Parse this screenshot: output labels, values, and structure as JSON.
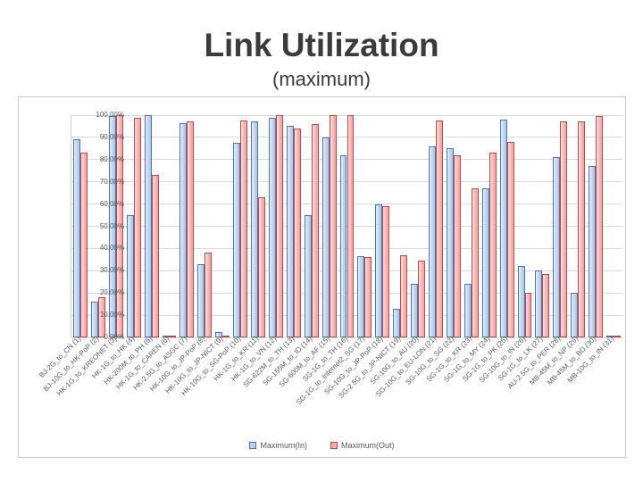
{
  "slide": {
    "title": "Link Utilization",
    "subtitle": "(maximum)"
  },
  "chart_data": {
    "type": "bar",
    "title": "Link Utilization (maximum)",
    "xlabel": "",
    "ylabel": "",
    "ylim": [
      0,
      100
    ],
    "ytick_step": 10,
    "yticks": [
      "0.00%",
      "10.00%",
      "20.00%",
      "30.00%",
      "40.00%",
      "50.00%",
      "60.00%",
      "70.00%",
      "80.00%",
      "90.00%",
      "100.00%"
    ],
    "grid": true,
    "legend_position": "bottom",
    "categories": [
      "BJ-2G_to_CN (1)",
      "BJ-10G_to_HK-PoP (2)",
      "HK-1G_to_KREONET (3)",
      "HK-1G_to_HK (4)",
      "HK-200M_to_PH (5)",
      "HK-1G_to_CAREN (6)",
      "HK-2.5G_to_ASGC (7)",
      "HK-10G_to_JP-PoP (8)",
      "HK-10G_to_JP-NICT (9)",
      "HK-10G_to_SG-PoP (10)",
      "HK-1G_to_KR (11)",
      "HK-1G_to_VN (12)",
      "SG-622M_to_TH (13)",
      "SG-155M_to_ID (14)",
      "SG-600M_to_AF (15)",
      "SG-1G_to_TH (16)",
      "SG-1G_to_Internet2_SG (17)",
      "SG-10G_to_JP-PoP (18)",
      "SG-2.5G_to_JP-NICT (19)",
      "SG-10G_to_AU (20)",
      "SG-10G_to_EU-LON (21)",
      "SG-10G_to_SG (22)",
      "SG-1G_to_KR (23)",
      "SG-1G_to_MY (24)",
      "SG-1G_to_PK (25)",
      "SG-10G_to_IN (26)",
      "SG-1G_to_LK (27)",
      "AU-2.5G_to_PER (28)",
      "MB-45M_to_NP (29)",
      "MB-45M_to_BD (30)",
      "MB-10G_to_IN (31)"
    ],
    "series": [
      {
        "name": "Maximum(In)",
        "fill_color": "#bcd0e9",
        "border_color": "#4a76b2",
        "values": [
          89,
          16,
          99.5,
          55,
          100,
          0.3,
          96.5,
          33,
          2.5,
          87.5,
          97,
          99,
          95,
          55,
          90,
          82,
          36.5,
          60,
          13,
          24,
          86,
          85,
          24,
          67,
          98,
          32,
          30,
          81,
          20,
          77,
          1
        ]
      },
      {
        "name": "Maximum(Out)",
        "fill_color": "#f2aeac",
        "border_color": "#bc4a48",
        "values": [
          83,
          18,
          100,
          99,
          73,
          0.3,
          97,
          38,
          0.3,
          97.5,
          63,
          100,
          94,
          96,
          100,
          100,
          36,
          59,
          37,
          34.5,
          97.5,
          82,
          67,
          83,
          88,
          20,
          28.5,
          97,
          97,
          99.5,
          0.5
        ]
      }
    ]
  }
}
